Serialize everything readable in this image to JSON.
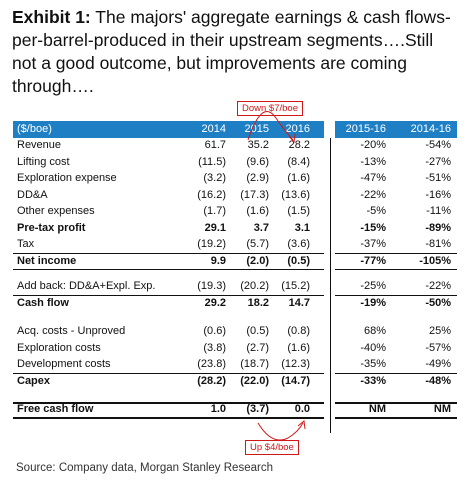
{
  "title": {
    "prefix": "Exhibit 1:",
    "text": " The majors' aggregate earnings & cash flows-per-barrel-produced in their upstream segments….Still not a good outcome, but improvements are coming through…."
  },
  "annotations": {
    "top": "Down $7/boe",
    "bottom": "Up $4/boe"
  },
  "header": {
    "label": "($/boe)",
    "y2014": "2014",
    "y2015": "2015",
    "y2016": "2016",
    "c1516": "2015-16",
    "c1416": "2014-16"
  },
  "rows": [
    {
      "label": "Revenue",
      "v2014": "61.7",
      "v2015": "35.2",
      "v2016": "28.2",
      "c1516": "-20%",
      "c1416": "-54%"
    },
    {
      "label": "Lifting cost",
      "v2014": "(11.5)",
      "v2015": "(9.6)",
      "v2016": "(8.4)",
      "c1516": "-13%",
      "c1416": "-27%"
    },
    {
      "label": "Exploration expense",
      "v2014": "(3.2)",
      "v2015": "(2.9)",
      "v2016": "(1.6)",
      "c1516": "-47%",
      "c1416": "-51%"
    },
    {
      "label": "DD&A",
      "v2014": "(16.2)",
      "v2015": "(17.3)",
      "v2016": "(13.6)",
      "c1516": "-22%",
      "c1416": "-16%"
    },
    {
      "label": "Other expenses",
      "v2014": "(1.7)",
      "v2015": "(1.6)",
      "v2016": "(1.5)",
      "c1516": "-5%",
      "c1416": "-11%"
    },
    {
      "label": "Pre-tax profit",
      "v2014": "29.1",
      "v2015": "3.7",
      "v2016": "3.1",
      "c1516": "-15%",
      "c1416": "-89%"
    },
    {
      "label": "Tax",
      "v2014": "(19.2)",
      "v2015": "(5.7)",
      "v2016": "(3.6)",
      "c1516": "-37%",
      "c1416": "-81%"
    },
    {
      "label": "Net income",
      "v2014": "9.9",
      "v2015": "(2.0)",
      "v2016": "(0.5)",
      "c1516": "-77%",
      "c1416": "-105%"
    },
    {
      "label": "Add back: DD&A+Expl. Exp.",
      "v2014": "(19.3)",
      "v2015": "(20.2)",
      "v2016": "(15.2)",
      "c1516": "-25%",
      "c1416": "-22%"
    },
    {
      "label": "Cash flow",
      "v2014": "29.2",
      "v2015": "18.2",
      "v2016": "14.7",
      "c1516": "-19%",
      "c1416": "-50%"
    },
    {
      "label": "Acq. costs - Unproved",
      "v2014": "(0.6)",
      "v2015": "(0.5)",
      "v2016": "(0.8)",
      "c1516": "68%",
      "c1416": "25%"
    },
    {
      "label": "Exploration costs",
      "v2014": "(3.8)",
      "v2015": "(2.7)",
      "v2016": "(1.6)",
      "c1516": "-40%",
      "c1416": "-57%"
    },
    {
      "label": "Development costs",
      "v2014": "(23.8)",
      "v2015": "(18.7)",
      "v2016": "(12.3)",
      "c1516": "-35%",
      "c1416": "-49%"
    },
    {
      "label": "Capex",
      "v2014": "(28.2)",
      "v2015": "(22.0)",
      "v2016": "(14.7)",
      "c1516": "-33%",
      "c1416": "-48%"
    },
    {
      "label": "Free cash flow",
      "v2014": "1.0",
      "v2015": "(3.7)",
      "v2016": "0.0",
      "c1516": "NM",
      "c1416": "NM"
    }
  ],
  "source": "Source: Company data, Morgan Stanley Research",
  "colors": {
    "header_bg": "#1f7fc4",
    "annotation": "#d01818",
    "text": "#111111"
  }
}
